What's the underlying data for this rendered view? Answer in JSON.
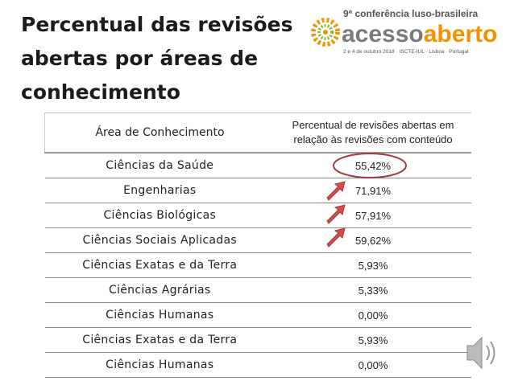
{
  "title": "Percentual das revisões abertas por áreas de conhecimento",
  "logo": {
    "edition": "9ª conferência luso-brasileira",
    "name_part1": "acesso",
    "name_part2": "aberto",
    "details": "2 e 4 de outubro 2018 · ISCTE-IUL · Lisboa · Portugal"
  },
  "table": {
    "header": [
      "Área de Conhecimento",
      "Percentual de revisões abertas em relação às revisões com conteúdo"
    ],
    "rows": [
      [
        "Ciências da Saúde",
        "55,42%"
      ],
      [
        "Engenharias",
        "71,91%"
      ],
      [
        "Ciências Biológicas",
        "57,91%"
      ],
      [
        "Ciências Sociais Aplicadas",
        "59,62%"
      ],
      [
        "Ciências Exatas e da Terra",
        "5,93%"
      ],
      [
        "Ciências Agrárias",
        "5,33%"
      ],
      [
        "Ciências Humanas",
        "0,00%"
      ],
      [
        "Ciências Exatas e da Terra",
        "5,93%"
      ],
      [
        "Ciências Humanas",
        "0,00%"
      ]
    ]
  }
}
